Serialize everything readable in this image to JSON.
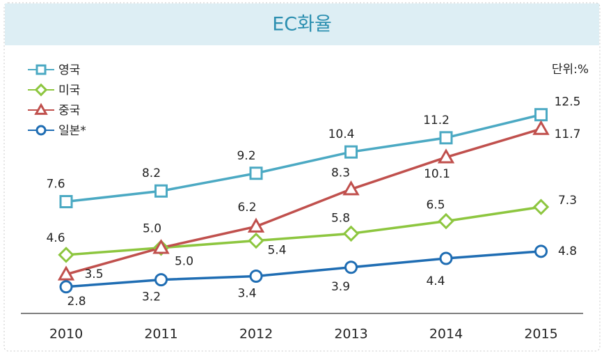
{
  "chart_data": {
    "type": "line",
    "title": "EC화율",
    "unit_label": "단위:%",
    "categories": [
      "2010",
      "2011",
      "2012",
      "2013",
      "2014",
      "2015"
    ],
    "ylim": [
      1.3,
      15
    ],
    "series": [
      {
        "name": "영국",
        "color": "#4ba9c3",
        "marker": "square",
        "values": [
          7.6,
          8.2,
          9.2,
          10.4,
          11.2,
          12.5
        ]
      },
      {
        "name": "미국",
        "color": "#8dc63f",
        "marker": "diamond",
        "values": [
          4.6,
          5.0,
          5.4,
          5.8,
          6.5,
          7.3
        ],
        "value_labels": [
          "4.6",
          "5.0",
          "5.4",
          "5.8",
          "6.5",
          "7.3"
        ]
      },
      {
        "name": "중국",
        "color": "#c0504d",
        "marker": "triangle",
        "values": [
          3.5,
          5.0,
          6.2,
          8.3,
          10.1,
          11.7
        ],
        "value_labels": [
          "3.5",
          "5.0",
          "6.2",
          "8.3",
          "10.1",
          "11.7"
        ]
      },
      {
        "name": "일본*",
        "color": "#1f6db3",
        "marker": "circle",
        "values": [
          2.8,
          3.2,
          3.4,
          3.9,
          4.4,
          4.8
        ]
      }
    ]
  }
}
